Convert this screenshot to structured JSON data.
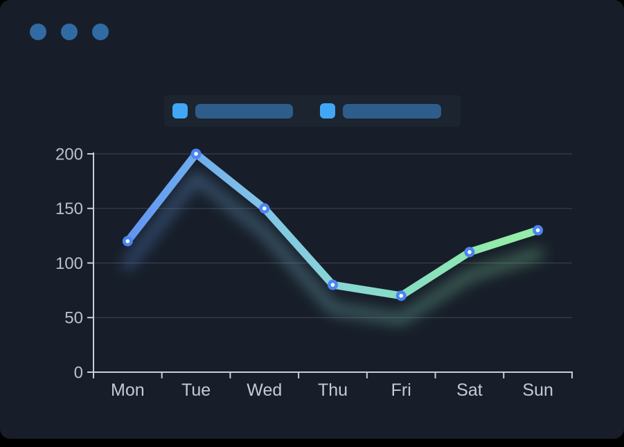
{
  "window": {
    "controls": {
      "color": "#316ba4",
      "count": 3
    }
  },
  "legend": {
    "background": "#1c2430",
    "items": [
      {
        "swatch_color": "#41a6f6",
        "bar_color": "#2e5d8c"
      },
      {
        "swatch_color": "#41a6f6",
        "bar_color": "#2e5d8c"
      }
    ]
  },
  "chart_data": {
    "type": "line",
    "title": "",
    "xlabel": "",
    "ylabel": "",
    "categories": [
      "Mon",
      "Tue",
      "Wed",
      "Thu",
      "Fri",
      "Sat",
      "Sun"
    ],
    "values": [
      120,
      200,
      150,
      80,
      70,
      110,
      130
    ],
    "ylim": [
      0,
      200
    ],
    "yticks": [
      0,
      50,
      100,
      150,
      200
    ],
    "grid": true,
    "legend_position": "top",
    "line_gradient": [
      "#5d87f0",
      "#6aa5ef",
      "#7fc2e7",
      "#89d4d8",
      "#88dec0",
      "#92eaab",
      "#99f1a4"
    ],
    "marker_color": "#4b85f2",
    "marker_core_color": "#ffffff",
    "axis_color": "#c9cdd8",
    "grid_color": "#454c59",
    "tick_label_color": "#bac0cd",
    "category_label_color": "#c6cad6"
  }
}
